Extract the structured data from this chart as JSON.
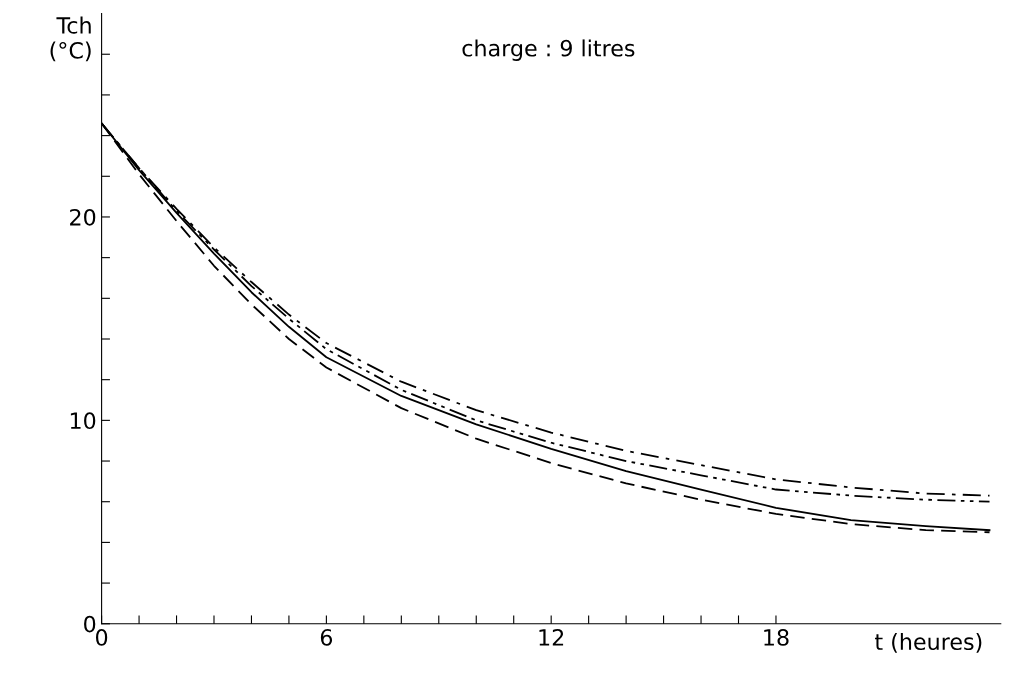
{
  "chart_data": {
    "type": "line",
    "xlabel": "t (heures)",
    "ylabel": "Tch\n(°C)",
    "annotations": [
      "charge : 9 litres"
    ],
    "x": [
      0,
      1,
      2,
      3,
      4,
      5,
      6,
      8,
      10,
      12,
      14,
      16,
      18,
      20,
      22,
      23.7
    ],
    "xlim": [
      0,
      24
    ],
    "ylim": [
      0,
      30
    ],
    "xticks": [
      0,
      {
        "value": 1,
        "label": null
      },
      {
        "value": 2,
        "label": null
      },
      {
        "value": 3,
        "label": null
      },
      {
        "value": 4,
        "label": null
      },
      {
        "value": 5,
        "label": null
      },
      6,
      {
        "value": 7,
        "label": null
      },
      {
        "value": 8,
        "label": null
      },
      {
        "value": 9,
        "label": null
      },
      {
        "value": 10,
        "label": null
      },
      {
        "value": 11,
        "label": null
      },
      12,
      {
        "value": 13,
        "label": null
      },
      {
        "value": 14,
        "label": null
      },
      {
        "value": 15,
        "label": null
      },
      {
        "value": 16,
        "label": null
      },
      {
        "value": 17,
        "label": null
      },
      18
    ],
    "yticks": [
      0,
      {
        "value": 2,
        "label": null
      },
      {
        "value": 4,
        "label": null
      },
      {
        "value": 6,
        "label": null
      },
      {
        "value": 8,
        "label": null
      },
      10,
      {
        "value": 12,
        "label": null
      },
      {
        "value": 14,
        "label": null
      },
      {
        "value": 16,
        "label": null
      },
      {
        "value": 18,
        "label": null
      },
      20,
      {
        "value": 22,
        "label": null
      },
      {
        "value": 24,
        "label": null
      },
      {
        "value": 26,
        "label": null
      },
      {
        "value": 28,
        "label": null
      }
    ],
    "grid": false,
    "marker": "none",
    "series": [
      {
        "color": "#000000",
        "line_style": "solid",
        "values": [
          24.6,
          22.3,
          20.2,
          18.2,
          16.3,
          14.6,
          13.1,
          11.2,
          9.8,
          8.6,
          7.5,
          6.6,
          5.7,
          5.1,
          4.8,
          4.6
        ]
      },
      {
        "color": "#000000",
        "line_style": "dashed",
        "values": [
          24.6,
          22.1,
          19.8,
          17.6,
          15.7,
          14.0,
          12.6,
          10.6,
          9.1,
          7.9,
          6.9,
          6.1,
          5.4,
          4.9,
          4.6,
          4.5
        ]
      },
      {
        "color": "#000000",
        "line_style": "dashdot",
        "values": [
          24.6,
          22.4,
          20.4,
          18.5,
          16.8,
          15.2,
          13.8,
          11.9,
          10.5,
          9.4,
          8.5,
          7.8,
          7.1,
          6.7,
          6.4,
          6.3
        ]
      },
      {
        "color": "#000000",
        "line_style": "dashdotdot",
        "values": [
          24.6,
          22.4,
          20.3,
          18.4,
          16.6,
          15.0,
          13.5,
          11.5,
          10.0,
          8.9,
          8.0,
          7.3,
          6.6,
          6.3,
          6.1,
          6.0
        ]
      }
    ]
  }
}
